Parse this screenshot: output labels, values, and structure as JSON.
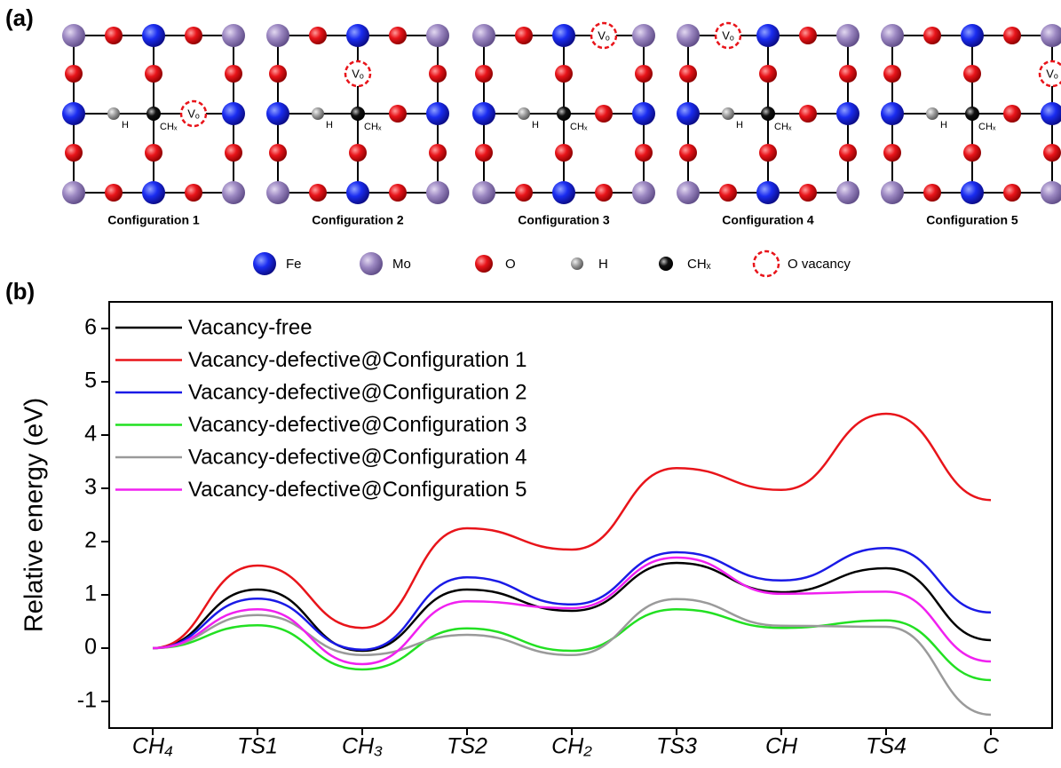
{
  "panel_a": {
    "label": "(a)",
    "configurations": [
      {
        "label": "Configuration 1",
        "h_label": "H",
        "ch_label": "CHₓ",
        "vacancy_label": "Vₒ"
      },
      {
        "label": "Configuration 2",
        "h_label": "H",
        "ch_label": "CHₓ",
        "vacancy_label": "Vₒ"
      },
      {
        "label": "Configuration 3",
        "h_label": "H",
        "ch_label": "CHₓ",
        "vacancy_label": "Vₒ"
      },
      {
        "label": "Configuration 4",
        "h_label": "H",
        "ch_label": "CHₓ",
        "vacancy_label": "Vₒ"
      },
      {
        "label": "Configuration 5",
        "h_label": "H",
        "ch_label": "CHₓ",
        "vacancy_label": "Vₒ"
      }
    ],
    "legend": [
      "Fe",
      "Mo",
      "O",
      "H",
      "CHₓ",
      "O vacancy"
    ]
  },
  "chart_data": {
    "type": "line",
    "panel_label": "(b)",
    "y_label": "Relative energy (eV)",
    "categories": [
      "CH₄",
      "TS1",
      "CH₃",
      "TS2",
      "CH₂",
      "TS3",
      "CH",
      "TS4",
      "C"
    ],
    "series": [
      {
        "name": "Vacancy-free",
        "color": "#000000",
        "values": [
          0,
          1.1,
          -0.05,
          1.1,
          0.7,
          1.6,
          1.05,
          1.5,
          0.15
        ]
      },
      {
        "name": "Vacancy-defective@Configuration 1",
        "color": "#e8141a",
        "values": [
          0,
          1.55,
          0.38,
          2.25,
          1.85,
          3.38,
          2.97,
          4.4,
          2.78
        ]
      },
      {
        "name": "Vacancy-defective@Configuration 2",
        "color": "#1a1ae6",
        "values": [
          0,
          0.93,
          -0.03,
          1.33,
          0.82,
          1.8,
          1.27,
          1.88,
          0.67
        ]
      },
      {
        "name": "Vacancy-defective@Configuration 3",
        "color": "#22e022",
        "values": [
          0,
          0.43,
          -0.4,
          0.37,
          -0.05,
          0.73,
          0.38,
          0.52,
          -0.6
        ]
      },
      {
        "name": "Vacancy-defective@Configuration 4",
        "color": "#9a9a9a",
        "values": [
          0,
          0.62,
          -0.13,
          0.25,
          -0.13,
          0.92,
          0.42,
          0.4,
          -1.25
        ]
      },
      {
        "name": "Vacancy-defective@Configuration 5",
        "color": "#f020f0",
        "values": [
          0,
          0.73,
          -0.3,
          0.88,
          0.75,
          1.7,
          1.02,
          1.06,
          -0.25
        ]
      }
    ],
    "ylim": [
      -1.5,
      6.5
    ],
    "yticks": [
      -1,
      0,
      1,
      2,
      3,
      4,
      5,
      6
    ],
    "legend": "upper left"
  }
}
